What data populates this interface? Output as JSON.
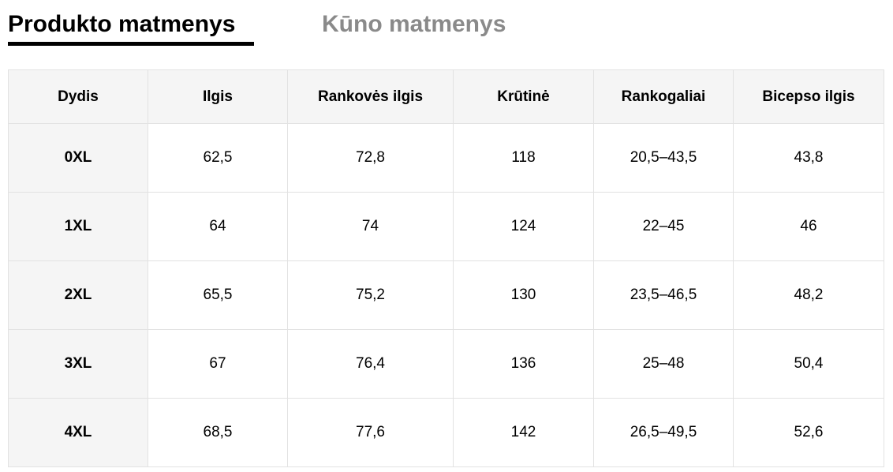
{
  "tabs": {
    "active": "Produkto matmenys",
    "inactive": "Kūno matmenys"
  },
  "table": {
    "headers": [
      "Dydis",
      "Ilgis",
      "Rankovės ilgis",
      "Krūtinė",
      "Rankogaliai",
      "Bicepso ilgis"
    ],
    "rows": [
      [
        "0XL",
        "62,5",
        "72,8",
        "118",
        "20,5–43,5",
        "43,8"
      ],
      [
        "1XL",
        "64",
        "74",
        "124",
        "22–45",
        "46"
      ],
      [
        "2XL",
        "65,5",
        "75,2",
        "130",
        "23,5–46,5",
        "48,2"
      ],
      [
        "3XL",
        "67",
        "76,4",
        "136",
        "25–48",
        "50,4"
      ],
      [
        "4XL",
        "68,5",
        "77,6",
        "142",
        "26,5–49,5",
        "52,6"
      ]
    ]
  },
  "colors": {
    "active_tab": "#000000",
    "inactive_tab": "#8a8a8a",
    "header_bg": "#f5f5f5",
    "border": "#e2e2e2"
  }
}
